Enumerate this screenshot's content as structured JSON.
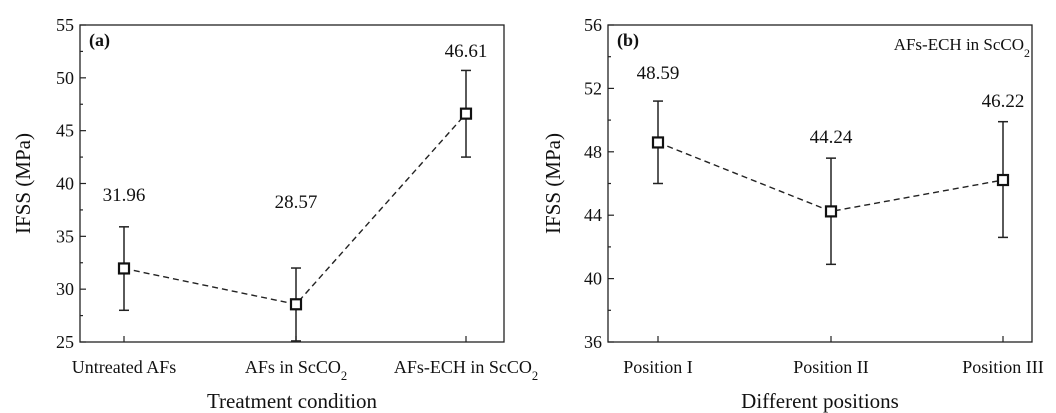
{
  "chart_data": [
    {
      "type": "line",
      "panel_label": "(a)",
      "annotation": "",
      "categories": [
        "Untreated AFs",
        "AFs in ScCO2",
        "AFs-ECH in ScCO2"
      ],
      "category_labels": [
        {
          "main": "Untreated AFs",
          "sub": "",
          "tail": ""
        },
        {
          "main": "AFs in ScCO",
          "sub": "2",
          "tail": ""
        },
        {
          "main": "AFs-ECH in ScCO",
          "sub": "2",
          "tail": ""
        }
      ],
      "values": [
        31.96,
        28.57,
        46.61
      ],
      "value_labels": [
        "31.96",
        "28.57",
        "46.61"
      ],
      "error_low": [
        28.0,
        25.1,
        42.5
      ],
      "error_high": [
        35.9,
        32.0,
        50.7
      ],
      "xlabel": "Treatment condition",
      "ylabel": "IFSS (MPa)",
      "ylim": [
        25,
        55
      ],
      "yticks": [
        25,
        30,
        35,
        40,
        45,
        50,
        55
      ],
      "grid": false,
      "line_style": "dashed",
      "marker": "open-square"
    },
    {
      "type": "line",
      "panel_label": "(b)",
      "annotation": "AFs-ECH in ScCO2",
      "annotation_parts": {
        "main": "AFs-ECH in ScCO",
        "sub": "2"
      },
      "categories": [
        "Position I",
        "Position II",
        "Position III"
      ],
      "category_labels": [
        {
          "main": "Position I",
          "sub": "",
          "tail": ""
        },
        {
          "main": "Position II",
          "sub": "",
          "tail": ""
        },
        {
          "main": "Position III",
          "sub": "",
          "tail": ""
        }
      ],
      "values": [
        48.59,
        44.24,
        46.22
      ],
      "value_labels": [
        "48.59",
        "44.24",
        "46.22"
      ],
      "error_low": [
        46.0,
        40.9,
        42.6
      ],
      "error_high": [
        51.2,
        47.6,
        49.9
      ],
      "xlabel": "Different positions",
      "ylabel": "IFSS (MPa)",
      "ylim": [
        36,
        56
      ],
      "yticks": [
        36,
        40,
        44,
        48,
        52,
        56
      ],
      "grid": false,
      "line_style": "dashed",
      "marker": "open-square"
    }
  ]
}
